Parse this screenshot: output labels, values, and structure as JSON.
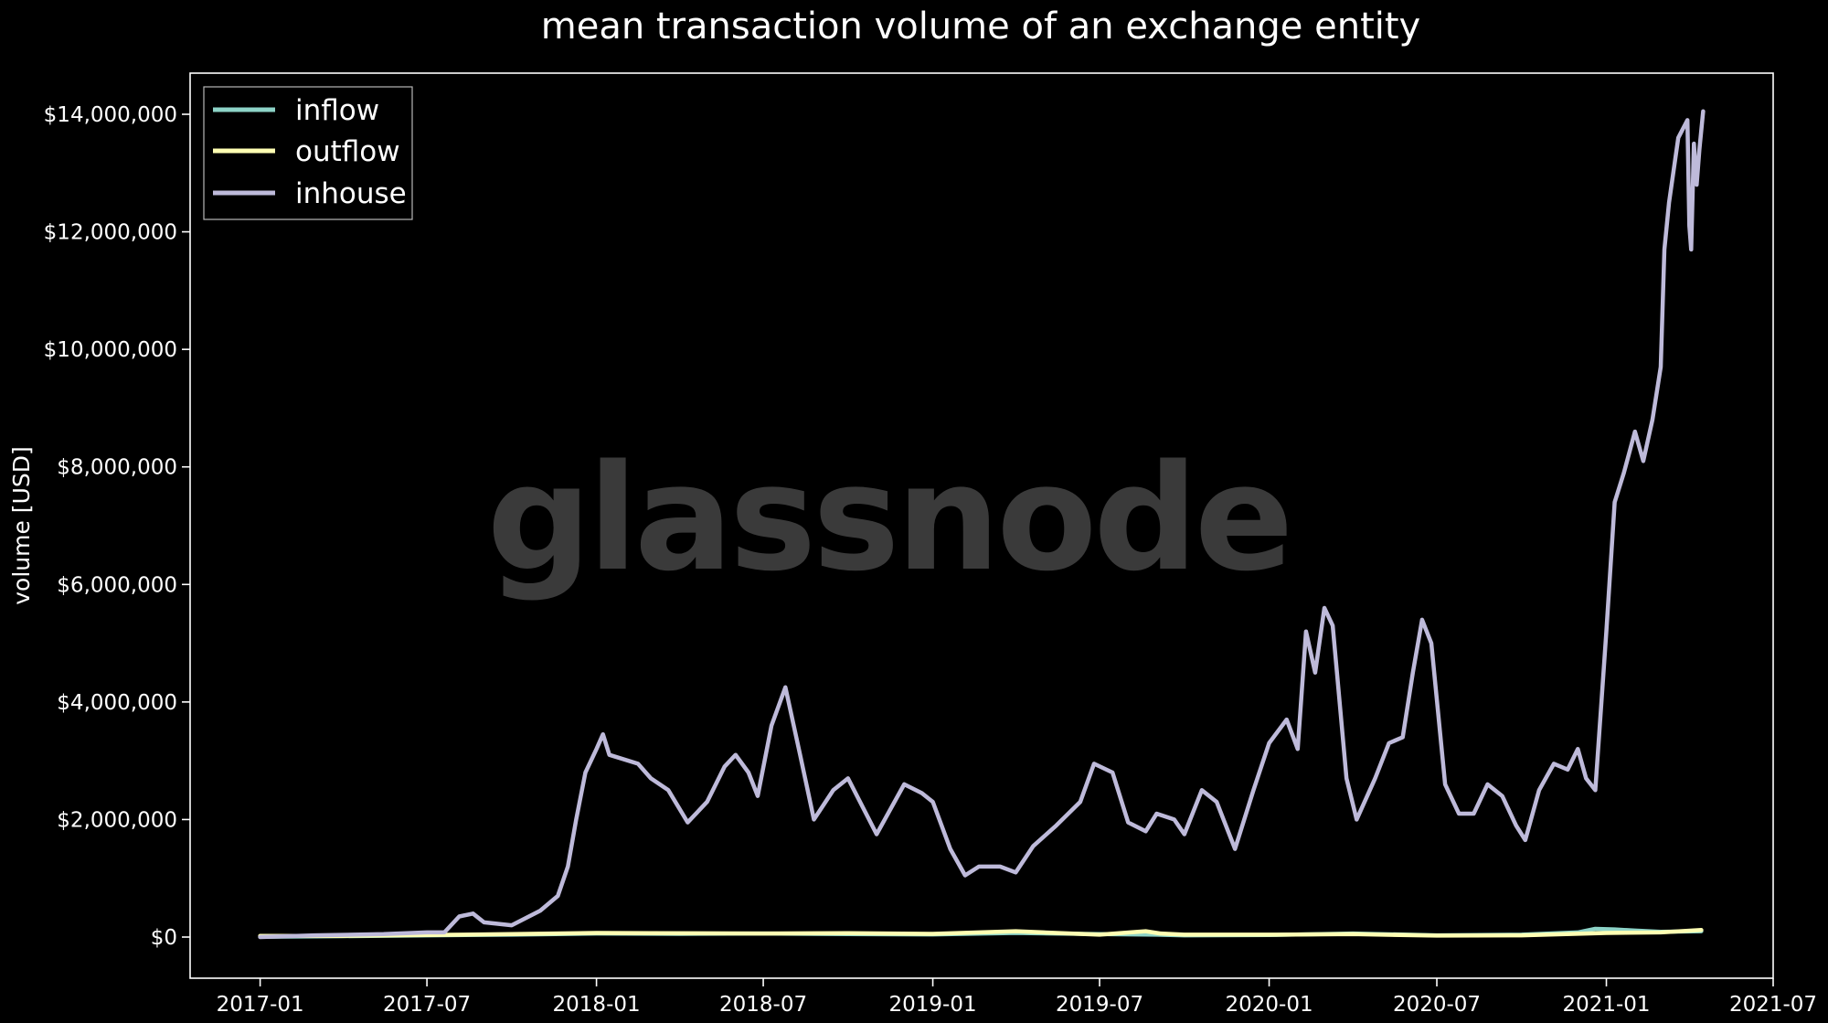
{
  "chart_data": {
    "type": "line",
    "title": "mean transaction volume of an exchange entity",
    "xlabel": "",
    "ylabel": "volume [USD]",
    "watermark": "glassnode",
    "x_ticks": [
      "2017-01",
      "2017-07",
      "2018-01",
      "2018-07",
      "2019-01",
      "2019-07",
      "2020-01",
      "2020-07",
      "2021-01",
      "2021-07"
    ],
    "y_ticks": [
      0,
      2000000,
      4000000,
      6000000,
      8000000,
      10000000,
      12000000,
      14000000
    ],
    "y_tick_labels": [
      "$0",
      "$2,000,000",
      "$4,000,000",
      "$6,000,000",
      "$8,000,000",
      "$10,000,000",
      "$12,000,000",
      "$14,000,000"
    ],
    "xlim": [
      "2016-10-17",
      "2021-07-01"
    ],
    "ylim": [
      -700000,
      14700000
    ],
    "grid": false,
    "legend_position": "top-left",
    "background": "#000000",
    "series": [
      {
        "name": "inflow",
        "color": "#8dd3c7",
        "points": [
          [
            "2017-01-01",
            5000
          ],
          [
            "2017-04-01",
            15000
          ],
          [
            "2017-07-01",
            30000
          ],
          [
            "2017-10-01",
            40000
          ],
          [
            "2018-01-01",
            60000
          ],
          [
            "2018-04-01",
            55000
          ],
          [
            "2018-07-01",
            60000
          ],
          [
            "2018-10-01",
            50000
          ],
          [
            "2019-01-01",
            45000
          ],
          [
            "2019-04-01",
            70000
          ],
          [
            "2019-07-01",
            50000
          ],
          [
            "2019-09-01",
            40000
          ],
          [
            "2019-10-01",
            30000
          ],
          [
            "2020-01-01",
            35000
          ],
          [
            "2020-04-01",
            60000
          ],
          [
            "2020-07-01",
            30000
          ],
          [
            "2020-10-01",
            40000
          ],
          [
            "2020-12-01",
            80000
          ],
          [
            "2020-12-20",
            140000
          ],
          [
            "2021-01-10",
            130000
          ],
          [
            "2021-02-01",
            110000
          ],
          [
            "2021-03-01",
            90000
          ],
          [
            "2021-04-14",
            100000
          ]
        ]
      },
      {
        "name": "outflow",
        "color": "#ffffb3",
        "points": [
          [
            "2017-01-01",
            20000
          ],
          [
            "2017-04-01",
            20000
          ],
          [
            "2017-07-01",
            35000
          ],
          [
            "2017-10-01",
            50000
          ],
          [
            "2018-01-01",
            70000
          ],
          [
            "2018-03-01",
            65000
          ],
          [
            "2018-07-01",
            60000
          ],
          [
            "2018-10-01",
            65000
          ],
          [
            "2019-01-01",
            55000
          ],
          [
            "2019-04-01",
            100000
          ],
          [
            "2019-05-01",
            80000
          ],
          [
            "2019-07-01",
            40000
          ],
          [
            "2019-08-20",
            100000
          ],
          [
            "2019-09-05",
            60000
          ],
          [
            "2019-10-01",
            40000
          ],
          [
            "2020-01-01",
            40000
          ],
          [
            "2020-04-01",
            50000
          ],
          [
            "2020-07-01",
            25000
          ],
          [
            "2020-10-01",
            30000
          ],
          [
            "2021-01-01",
            70000
          ],
          [
            "2021-03-01",
            80000
          ],
          [
            "2021-04-14",
            120000
          ]
        ]
      },
      {
        "name": "inhouse",
        "color": "#bebada",
        "points": [
          [
            "2017-01-01",
            0
          ],
          [
            "2017-03-01",
            30000
          ],
          [
            "2017-05-15",
            50000
          ],
          [
            "2017-07-01",
            80000
          ],
          [
            "2017-07-20",
            80000
          ],
          [
            "2017-08-05",
            350000
          ],
          [
            "2017-08-20",
            400000
          ],
          [
            "2017-09-01",
            250000
          ],
          [
            "2017-10-01",
            200000
          ],
          [
            "2017-11-01",
            450000
          ],
          [
            "2017-11-20",
            700000
          ],
          [
            "2017-12-01",
            1200000
          ],
          [
            "2017-12-10",
            2000000
          ],
          [
            "2017-12-20",
            2800000
          ],
          [
            "2018-01-01",
            3200000
          ],
          [
            "2018-01-08",
            3450000
          ],
          [
            "2018-01-15",
            3100000
          ],
          [
            "2018-02-15",
            2950000
          ],
          [
            "2018-03-01",
            2700000
          ],
          [
            "2018-03-20",
            2500000
          ],
          [
            "2018-04-10",
            1950000
          ],
          [
            "2018-05-01",
            2300000
          ],
          [
            "2018-05-20",
            2900000
          ],
          [
            "2018-06-01",
            3100000
          ],
          [
            "2018-06-15",
            2800000
          ],
          [
            "2018-06-25",
            2400000
          ],
          [
            "2018-07-10",
            3600000
          ],
          [
            "2018-07-25",
            4250000
          ],
          [
            "2018-08-10",
            3100000
          ],
          [
            "2018-08-25",
            2000000
          ],
          [
            "2018-09-15",
            2500000
          ],
          [
            "2018-10-01",
            2700000
          ],
          [
            "2018-11-01",
            1750000
          ],
          [
            "2018-12-01",
            2600000
          ],
          [
            "2018-12-20",
            2450000
          ],
          [
            "2019-01-01",
            2300000
          ],
          [
            "2019-01-20",
            1500000
          ],
          [
            "2019-02-05",
            1050000
          ],
          [
            "2019-02-20",
            1200000
          ],
          [
            "2019-03-15",
            1200000
          ],
          [
            "2019-04-01",
            1100000
          ],
          [
            "2019-04-20",
            1550000
          ],
          [
            "2019-05-15",
            1900000
          ],
          [
            "2019-06-10",
            2300000
          ],
          [
            "2019-06-25",
            2950000
          ],
          [
            "2019-07-15",
            2800000
          ],
          [
            "2019-08-01",
            1950000
          ],
          [
            "2019-08-20",
            1800000
          ],
          [
            "2019-09-01",
            2100000
          ],
          [
            "2019-09-20",
            2000000
          ],
          [
            "2019-10-01",
            1750000
          ],
          [
            "2019-10-20",
            2500000
          ],
          [
            "2019-11-05",
            2300000
          ],
          [
            "2019-11-25",
            1500000
          ],
          [
            "2019-12-15",
            2500000
          ],
          [
            "2020-01-01",
            3300000
          ],
          [
            "2020-01-20",
            3700000
          ],
          [
            "2020-02-01",
            3200000
          ],
          [
            "2020-02-10",
            5200000
          ],
          [
            "2020-02-20",
            4500000
          ],
          [
            "2020-03-01",
            5600000
          ],
          [
            "2020-03-10",
            5300000
          ],
          [
            "2020-03-25",
            2700000
          ],
          [
            "2020-04-05",
            2000000
          ],
          [
            "2020-04-25",
            2700000
          ],
          [
            "2020-05-10",
            3300000
          ],
          [
            "2020-05-25",
            3400000
          ],
          [
            "2020-06-05",
            4500000
          ],
          [
            "2020-06-15",
            5400000
          ],
          [
            "2020-06-25",
            5000000
          ],
          [
            "2020-07-10",
            2600000
          ],
          [
            "2020-07-25",
            2100000
          ],
          [
            "2020-08-10",
            2100000
          ],
          [
            "2020-08-25",
            2600000
          ],
          [
            "2020-09-10",
            2400000
          ],
          [
            "2020-09-25",
            1900000
          ],
          [
            "2020-10-05",
            1650000
          ],
          [
            "2020-10-20",
            2500000
          ],
          [
            "2020-11-05",
            2950000
          ],
          [
            "2020-11-20",
            2850000
          ],
          [
            "2020-12-01",
            3200000
          ],
          [
            "2020-12-10",
            2700000
          ],
          [
            "2020-12-20",
            2500000
          ],
          [
            "2021-01-01",
            5200000
          ],
          [
            "2021-01-10",
            7400000
          ],
          [
            "2021-01-20",
            7900000
          ],
          [
            "2021-02-01",
            8600000
          ],
          [
            "2021-02-10",
            8100000
          ],
          [
            "2021-02-20",
            8800000
          ],
          [
            "2021-03-01",
            9700000
          ],
          [
            "2021-03-05",
            11700000
          ],
          [
            "2021-03-10",
            12500000
          ],
          [
            "2021-03-20",
            13600000
          ],
          [
            "2021-03-30",
            13900000
          ],
          [
            "2021-04-01",
            12100000
          ],
          [
            "2021-04-03",
            11700000
          ],
          [
            "2021-04-06",
            13500000
          ],
          [
            "2021-04-09",
            12800000
          ],
          [
            "2021-04-12",
            13400000
          ],
          [
            "2021-04-16",
            14050000
          ]
        ]
      }
    ]
  }
}
